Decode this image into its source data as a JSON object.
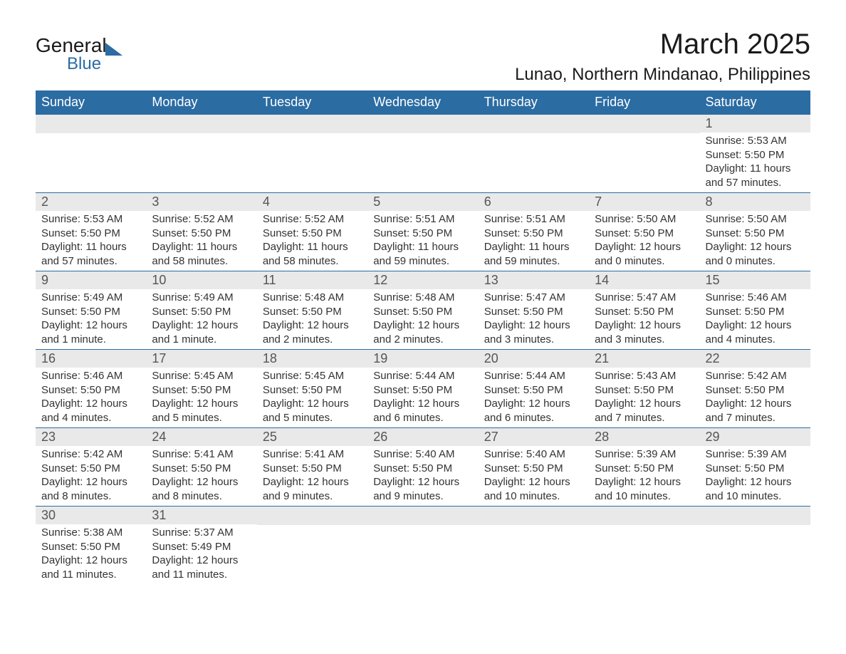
{
  "logo": {
    "text1": "General",
    "text2": "Blue"
  },
  "title": "March 2025",
  "location": "Lunao, Northern Mindanao, Philippines",
  "colors": {
    "header_bg": "#2b6ca3",
    "header_text": "#ffffff",
    "daynum_bg": "#e9e9e9",
    "daynum_text": "#555555",
    "body_text": "#333333",
    "row_border": "#2b6ca3"
  },
  "day_headers": [
    "Sunday",
    "Monday",
    "Tuesday",
    "Wednesday",
    "Thursday",
    "Friday",
    "Saturday"
  ],
  "weeks": [
    [
      null,
      null,
      null,
      null,
      null,
      null,
      {
        "n": "1",
        "sr": "Sunrise: 5:53 AM",
        "ss": "Sunset: 5:50 PM",
        "d1": "Daylight: 11 hours",
        "d2": "and 57 minutes."
      }
    ],
    [
      {
        "n": "2",
        "sr": "Sunrise: 5:53 AM",
        "ss": "Sunset: 5:50 PM",
        "d1": "Daylight: 11 hours",
        "d2": "and 57 minutes."
      },
      {
        "n": "3",
        "sr": "Sunrise: 5:52 AM",
        "ss": "Sunset: 5:50 PM",
        "d1": "Daylight: 11 hours",
        "d2": "and 58 minutes."
      },
      {
        "n": "4",
        "sr": "Sunrise: 5:52 AM",
        "ss": "Sunset: 5:50 PM",
        "d1": "Daylight: 11 hours",
        "d2": "and 58 minutes."
      },
      {
        "n": "5",
        "sr": "Sunrise: 5:51 AM",
        "ss": "Sunset: 5:50 PM",
        "d1": "Daylight: 11 hours",
        "d2": "and 59 minutes."
      },
      {
        "n": "6",
        "sr": "Sunrise: 5:51 AM",
        "ss": "Sunset: 5:50 PM",
        "d1": "Daylight: 11 hours",
        "d2": "and 59 minutes."
      },
      {
        "n": "7",
        "sr": "Sunrise: 5:50 AM",
        "ss": "Sunset: 5:50 PM",
        "d1": "Daylight: 12 hours",
        "d2": "and 0 minutes."
      },
      {
        "n": "8",
        "sr": "Sunrise: 5:50 AM",
        "ss": "Sunset: 5:50 PM",
        "d1": "Daylight: 12 hours",
        "d2": "and 0 minutes."
      }
    ],
    [
      {
        "n": "9",
        "sr": "Sunrise: 5:49 AM",
        "ss": "Sunset: 5:50 PM",
        "d1": "Daylight: 12 hours",
        "d2": "and 1 minute."
      },
      {
        "n": "10",
        "sr": "Sunrise: 5:49 AM",
        "ss": "Sunset: 5:50 PM",
        "d1": "Daylight: 12 hours",
        "d2": "and 1 minute."
      },
      {
        "n": "11",
        "sr": "Sunrise: 5:48 AM",
        "ss": "Sunset: 5:50 PM",
        "d1": "Daylight: 12 hours",
        "d2": "and 2 minutes."
      },
      {
        "n": "12",
        "sr": "Sunrise: 5:48 AM",
        "ss": "Sunset: 5:50 PM",
        "d1": "Daylight: 12 hours",
        "d2": "and 2 minutes."
      },
      {
        "n": "13",
        "sr": "Sunrise: 5:47 AM",
        "ss": "Sunset: 5:50 PM",
        "d1": "Daylight: 12 hours",
        "d2": "and 3 minutes."
      },
      {
        "n": "14",
        "sr": "Sunrise: 5:47 AM",
        "ss": "Sunset: 5:50 PM",
        "d1": "Daylight: 12 hours",
        "d2": "and 3 minutes."
      },
      {
        "n": "15",
        "sr": "Sunrise: 5:46 AM",
        "ss": "Sunset: 5:50 PM",
        "d1": "Daylight: 12 hours",
        "d2": "and 4 minutes."
      }
    ],
    [
      {
        "n": "16",
        "sr": "Sunrise: 5:46 AM",
        "ss": "Sunset: 5:50 PM",
        "d1": "Daylight: 12 hours",
        "d2": "and 4 minutes."
      },
      {
        "n": "17",
        "sr": "Sunrise: 5:45 AM",
        "ss": "Sunset: 5:50 PM",
        "d1": "Daylight: 12 hours",
        "d2": "and 5 minutes."
      },
      {
        "n": "18",
        "sr": "Sunrise: 5:45 AM",
        "ss": "Sunset: 5:50 PM",
        "d1": "Daylight: 12 hours",
        "d2": "and 5 minutes."
      },
      {
        "n": "19",
        "sr": "Sunrise: 5:44 AM",
        "ss": "Sunset: 5:50 PM",
        "d1": "Daylight: 12 hours",
        "d2": "and 6 minutes."
      },
      {
        "n": "20",
        "sr": "Sunrise: 5:44 AM",
        "ss": "Sunset: 5:50 PM",
        "d1": "Daylight: 12 hours",
        "d2": "and 6 minutes."
      },
      {
        "n": "21",
        "sr": "Sunrise: 5:43 AM",
        "ss": "Sunset: 5:50 PM",
        "d1": "Daylight: 12 hours",
        "d2": "and 7 minutes."
      },
      {
        "n": "22",
        "sr": "Sunrise: 5:42 AM",
        "ss": "Sunset: 5:50 PM",
        "d1": "Daylight: 12 hours",
        "d2": "and 7 minutes."
      }
    ],
    [
      {
        "n": "23",
        "sr": "Sunrise: 5:42 AM",
        "ss": "Sunset: 5:50 PM",
        "d1": "Daylight: 12 hours",
        "d2": "and 8 minutes."
      },
      {
        "n": "24",
        "sr": "Sunrise: 5:41 AM",
        "ss": "Sunset: 5:50 PM",
        "d1": "Daylight: 12 hours",
        "d2": "and 8 minutes."
      },
      {
        "n": "25",
        "sr": "Sunrise: 5:41 AM",
        "ss": "Sunset: 5:50 PM",
        "d1": "Daylight: 12 hours",
        "d2": "and 9 minutes."
      },
      {
        "n": "26",
        "sr": "Sunrise: 5:40 AM",
        "ss": "Sunset: 5:50 PM",
        "d1": "Daylight: 12 hours",
        "d2": "and 9 minutes."
      },
      {
        "n": "27",
        "sr": "Sunrise: 5:40 AM",
        "ss": "Sunset: 5:50 PM",
        "d1": "Daylight: 12 hours",
        "d2": "and 10 minutes."
      },
      {
        "n": "28",
        "sr": "Sunrise: 5:39 AM",
        "ss": "Sunset: 5:50 PM",
        "d1": "Daylight: 12 hours",
        "d2": "and 10 minutes."
      },
      {
        "n": "29",
        "sr": "Sunrise: 5:39 AM",
        "ss": "Sunset: 5:50 PM",
        "d1": "Daylight: 12 hours",
        "d2": "and 10 minutes."
      }
    ],
    [
      {
        "n": "30",
        "sr": "Sunrise: 5:38 AM",
        "ss": "Sunset: 5:50 PM",
        "d1": "Daylight: 12 hours",
        "d2": "and 11 minutes."
      },
      {
        "n": "31",
        "sr": "Sunrise: 5:37 AM",
        "ss": "Sunset: 5:49 PM",
        "d1": "Daylight: 12 hours",
        "d2": "and 11 minutes."
      },
      null,
      null,
      null,
      null,
      null
    ]
  ]
}
